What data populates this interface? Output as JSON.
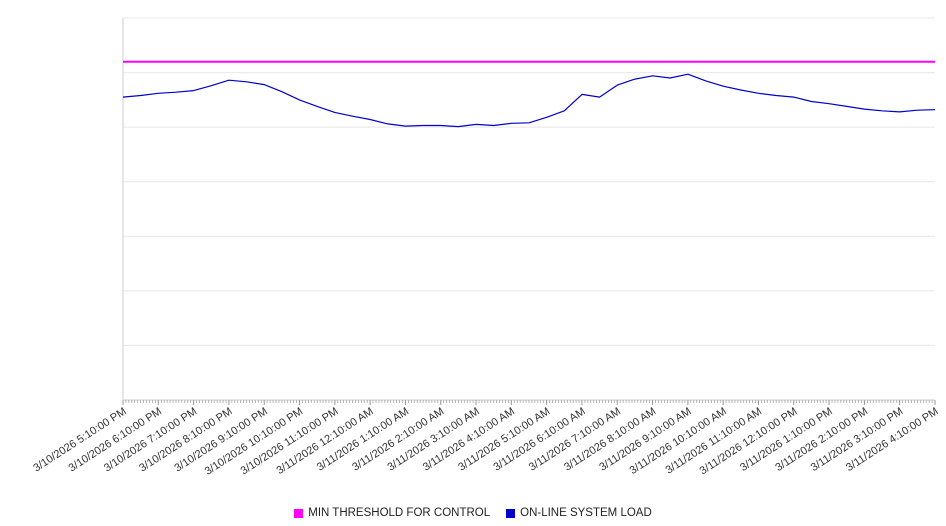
{
  "chart_data": {
    "type": "line",
    "title": "",
    "xlabel": "",
    "ylabel": "",
    "ylim": [
      0,
      7
    ],
    "gridlines": "horizontal",
    "y_tick_labels_visible": false,
    "legend_position": "bottom-center",
    "x_tick_labels": [
      "3/10/2026 5:10:00 PM",
      "3/10/2026 6:10:00 PM",
      "3/10/2026 7:10:00 PM",
      "3/10/2026 8:10:00 PM",
      "3/10/2026 9:10:00 PM",
      "3/10/2026 10:10:00 PM",
      "3/10/2026 11:10:00 PM",
      "3/11/2026 12:10:00 AM",
      "3/11/2026 1:10:00 AM",
      "3/11/2026 2:10:00 AM",
      "3/11/2026 3:10:00 AM",
      "3/11/2026 4:10:00 AM",
      "3/11/2026 5:10:00 AM",
      "3/11/2026 6:10:00 AM",
      "3/11/2026 7:10:00 AM",
      "3/11/2026 8:10:00 AM",
      "3/11/2026 9:10:00 AM",
      "3/11/2026 10:10:00 AM",
      "3/11/2026 11:10:00 AM",
      "3/11/2026 12:10:00 PM",
      "3/11/2026 1:10:00 PM",
      "3/11/2026 2:10:00 PM",
      "3/11/2026 3:10:00 PM",
      "3/11/2026 4:10:00 PM"
    ],
    "series": [
      {
        "name": "MIN THRESHOLD FOR CONTROL",
        "type": "constant-line",
        "color": "#ff00ff",
        "value": 6.2
      },
      {
        "name": "ON-LINE SYSTEM LOAD",
        "type": "line",
        "color": "#0000cc",
        "x_start_hour": 0,
        "x_step_hours": 0.5,
        "values": [
          5.55,
          5.58,
          5.62,
          5.64,
          5.67,
          5.76,
          5.86,
          5.83,
          5.78,
          5.65,
          5.5,
          5.38,
          5.27,
          5.2,
          5.14,
          5.06,
          5.02,
          5.03,
          5.03,
          5.01,
          5.05,
          5.03,
          5.07,
          5.08,
          5.18,
          5.3,
          5.6,
          5.55,
          5.77,
          5.88,
          5.94,
          5.9,
          5.97,
          5.85,
          5.75,
          5.68,
          5.62,
          5.58,
          5.55,
          5.47,
          5.43,
          5.38,
          5.33,
          5.3,
          5.28,
          5.31,
          5.32
        ]
      }
    ],
    "colors": {
      "gridline": "#e8e8e8",
      "axis": "#cccccc",
      "tick": "#999999",
      "label_text": "#333333"
    }
  }
}
